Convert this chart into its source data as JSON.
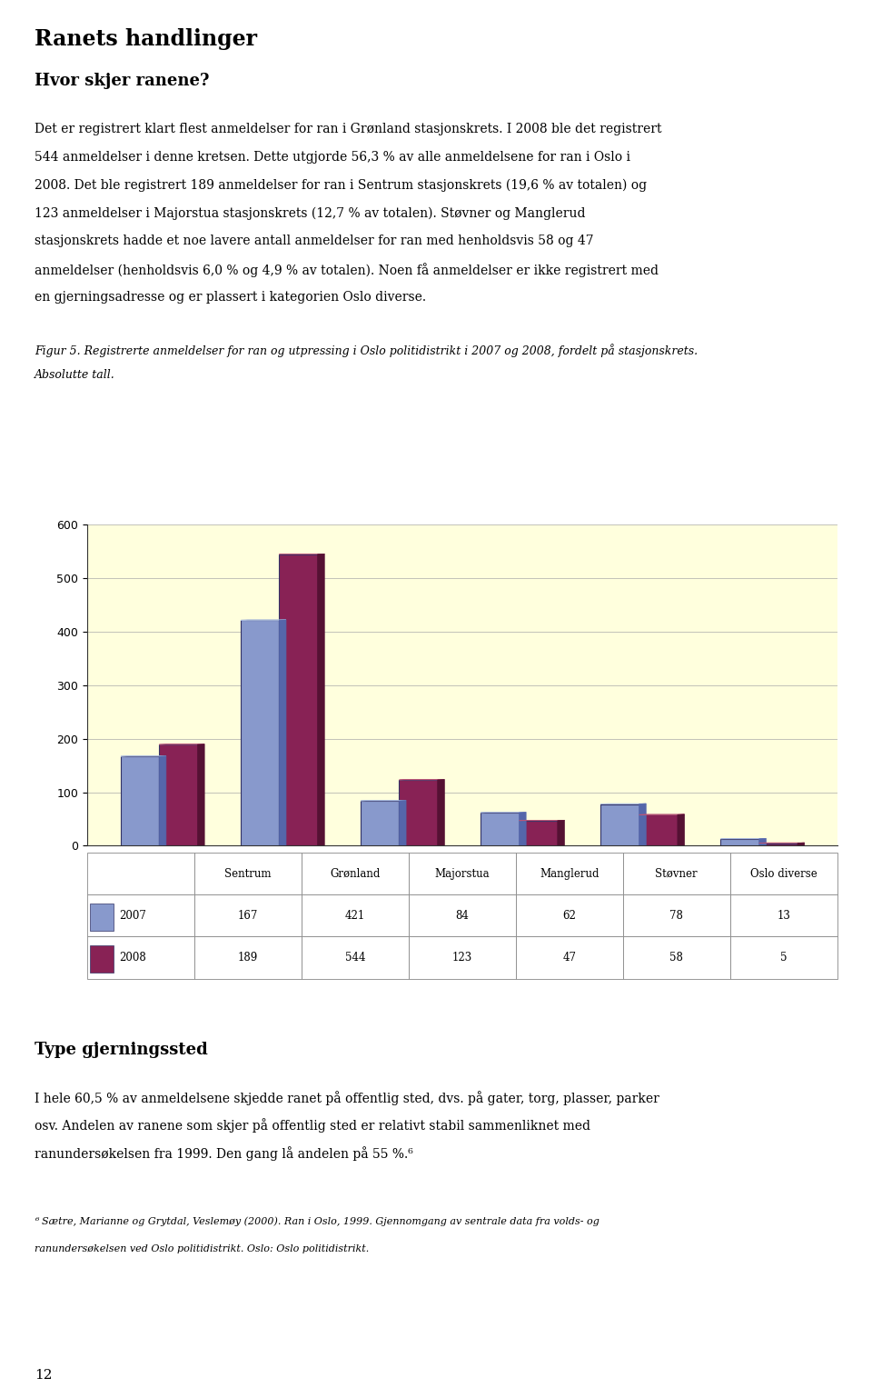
{
  "title": "Ranets handlinger",
  "subtitle1": "Hvor skjer ranene?",
  "body_lines": [
    "Det er registrert klart flest anmeldelser for ran i Grønland stasjonskrets. I 2008 ble det registrert",
    "544 anmeldelser i denne kretsen. Dette utgjorde 56,3 % av alle anmeldelsene for ran i Oslo i",
    "2008. Det ble registrert 189 anmeldelser for ran i Sentrum stasjonskrets (19,6 % av totalen) og",
    "123 anmeldelser i Majorstua stasjonskrets (12,7 % av totalen). Støvner og Manglerud",
    "stasjonskrets hadde et noe lavere antall anmeldelser for ran med henholdsvis 58 og 47",
    "anmeldelser (henholdsvis 6,0 % og 4,9 % av totalen). Noen få anmeldelser er ikke registrert med",
    "en gjerningsadresse og er plassert i kategorien Oslo diverse."
  ],
  "fig_caption_line1": "Figur 5. Registrerte anmeldelser for ran og utpressing i Oslo politidistrikt i 2007 og 2008, fordelt på stasjonskrets.",
  "fig_caption_line2": "Absolutte tall.",
  "categories": [
    "Sentrum",
    "Grønland",
    "Majorstua",
    "Manglerud",
    "Støvner",
    "Oslo diverse"
  ],
  "values_2007": [
    167,
    421,
    84,
    62,
    78,
    13
  ],
  "values_2008": [
    189,
    544,
    123,
    47,
    58,
    5
  ],
  "color_2007": "#8899cc",
  "color_2008": "#882255",
  "bar_top_2007": "#aabbdd",
  "bar_side_2007": "#5566aa",
  "bar_top_2008": "#bb5577",
  "bar_side_2008": "#551133",
  "bar_edge_color": "#333366",
  "chart_bg": "#ffffdd",
  "ylim": [
    0,
    600
  ],
  "yticks": [
    0,
    100,
    200,
    300,
    400,
    500,
    600
  ],
  "legend_2007": "2007",
  "legend_2008": "2008",
  "footer_heading": "Type gjerningssted",
  "footer_lines": [
    "I hele 60,5 % av anmeldelsene skjedde ranet på offentlig sted, dvs. på gater, torg, plasser, parker",
    "osv. Andelen av ranene som skjer på offentlig sted er relativt stabil sammenliknet med",
    "ranundersøkelsen fra 1999. Den gang lå andelen på 55 %.⁶"
  ],
  "footnote_line1": "⁶ Sætre, Marianne og Grytdal, Veslemøy (2000). Ran i Oslo, 1999. Gjennomgang av sentrale data fra volds- og",
  "footnote_line2": "ranundersøkelsen ved Oslo politidistrikt. Oslo: Oslo politidistrikt.",
  "page_number": "12"
}
